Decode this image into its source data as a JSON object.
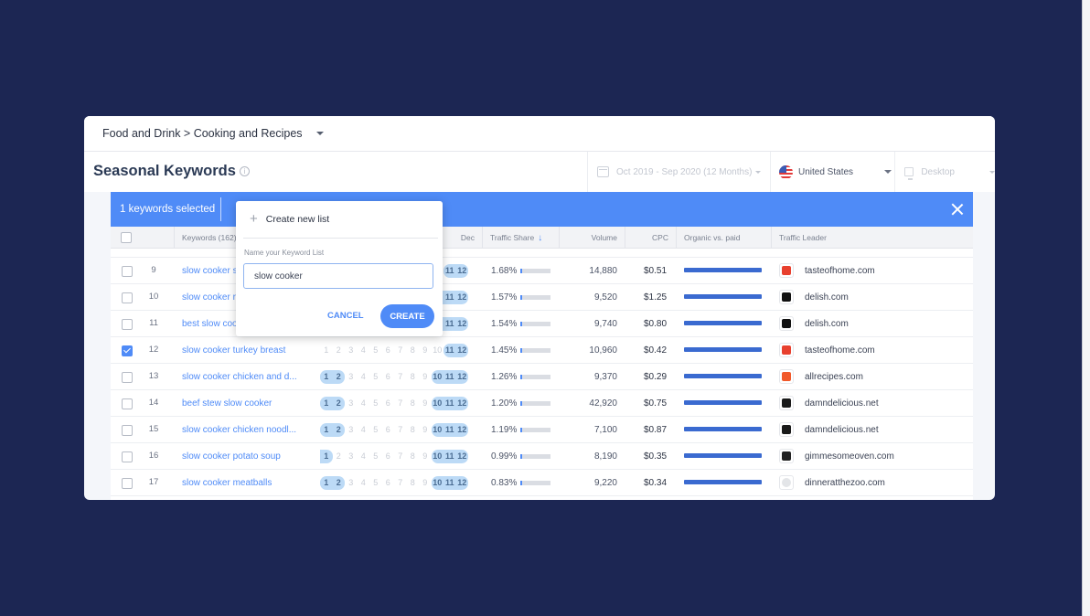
{
  "breadcrumb": {
    "text": "Food and Drink > Cooking and Recipes"
  },
  "header": {
    "title": "Seasonal Keywords",
    "info_icon": "info-icon",
    "date_range": "Oct 2019 - Sep 2020 (12 Months)",
    "country": "United States",
    "device": "Desktop"
  },
  "selection_bar": {
    "text": "1 keywords selected",
    "color": "#4f8bf7"
  },
  "table": {
    "columns": {
      "keywords": "Keywords (162)",
      "dec": "Dec",
      "traffic_share": "Traffic Share",
      "volume": "Volume",
      "cpc": "CPC",
      "organic_vs_paid": "Organic vs. paid",
      "traffic_leader": "Traffic Leader"
    },
    "month_labels": [
      "1",
      "2",
      "3",
      "4",
      "5",
      "6",
      "7",
      "8",
      "9",
      "10",
      "11",
      "12"
    ],
    "rows": [
      {
        "num": "9",
        "keyword": "slow cooker s...",
        "checked": false,
        "months_hi": [
          11,
          12
        ],
        "share": "1.68%",
        "volume": "14,880",
        "cpc": "$0.51",
        "leader": "tasteofhome.com",
        "leader_icon": "tasteofhome-logo",
        "icon_color": "#e8402e"
      },
      {
        "num": "10",
        "keyword": "slow cooker r...",
        "checked": false,
        "months_hi": [
          10,
          11,
          12
        ],
        "share": "1.57%",
        "volume": "9,520",
        "cpc": "$1.25",
        "leader": "delish.com",
        "leader_icon": "delish-logo",
        "icon_color": "#111111"
      },
      {
        "num": "11",
        "keyword": "best slow coo...",
        "checked": false,
        "months_hi": [
          10,
          11,
          12
        ],
        "share": "1.54%",
        "volume": "9,740",
        "cpc": "$0.80",
        "leader": "delish.com",
        "leader_icon": "delish-logo",
        "icon_color": "#111111"
      },
      {
        "num": "12",
        "keyword": "slow cooker turkey breast",
        "checked": true,
        "months_hi": [
          11,
          12
        ],
        "share": "1.45%",
        "volume": "10,960",
        "cpc": "$0.42",
        "leader": "tasteofhome.com",
        "leader_icon": "tasteofhome-logo",
        "icon_color": "#e8402e"
      },
      {
        "num": "13",
        "keyword": "slow cooker chicken and d...",
        "checked": false,
        "months_hi": [
          1,
          2,
          10,
          11,
          12
        ],
        "share": "1.26%",
        "volume": "9,370",
        "cpc": "$0.29",
        "leader": "allrecipes.com",
        "leader_icon": "allrecipes-logo",
        "icon_color": "#f1592a"
      },
      {
        "num": "14",
        "keyword": "beef stew slow cooker",
        "checked": false,
        "months_hi": [
          1,
          2,
          10,
          11,
          12
        ],
        "share": "1.20%",
        "volume": "42,920",
        "cpc": "$0.75",
        "leader": "damndelicious.net",
        "leader_icon": "damndelicious-logo",
        "icon_color": "#1a1a1a"
      },
      {
        "num": "15",
        "keyword": "slow cooker chicken noodl...",
        "checked": false,
        "months_hi": [
          1,
          2,
          10,
          11,
          12
        ],
        "share": "1.19%",
        "volume": "7,100",
        "cpc": "$0.87",
        "leader": "damndelicious.net",
        "leader_icon": "damndelicious-logo",
        "icon_color": "#1a1a1a"
      },
      {
        "num": "16",
        "keyword": "slow cooker potato soup",
        "checked": false,
        "months_hi": [
          1,
          10,
          11,
          12
        ],
        "share": "0.99%",
        "volume": "8,190",
        "cpc": "$0.35",
        "leader": "gimmesomeoven.com",
        "leader_icon": "gimmesomeoven-logo",
        "icon_color": "#222222"
      },
      {
        "num": "17",
        "keyword": "slow cooker meatballs",
        "checked": false,
        "months_hi": [
          1,
          2,
          10,
          11,
          12
        ],
        "share": "0.83%",
        "volume": "9,220",
        "cpc": "$0.34",
        "leader": "dinneratthezoo.com",
        "leader_icon": "dinneratthezoo-logo",
        "icon_color": "#d0d3d9"
      }
    ]
  },
  "popup": {
    "create_new_label": "Create new list",
    "field_label": "Name your Keyword List",
    "field_value": "slow cooker",
    "cancel_label": "CANCEL",
    "create_label": "CREATE"
  },
  "colors": {
    "background": "#1c2653",
    "accent": "#4f8bf7",
    "organic_bar": "#3a6ad0",
    "month_highlight": "#bcdaf6"
  }
}
